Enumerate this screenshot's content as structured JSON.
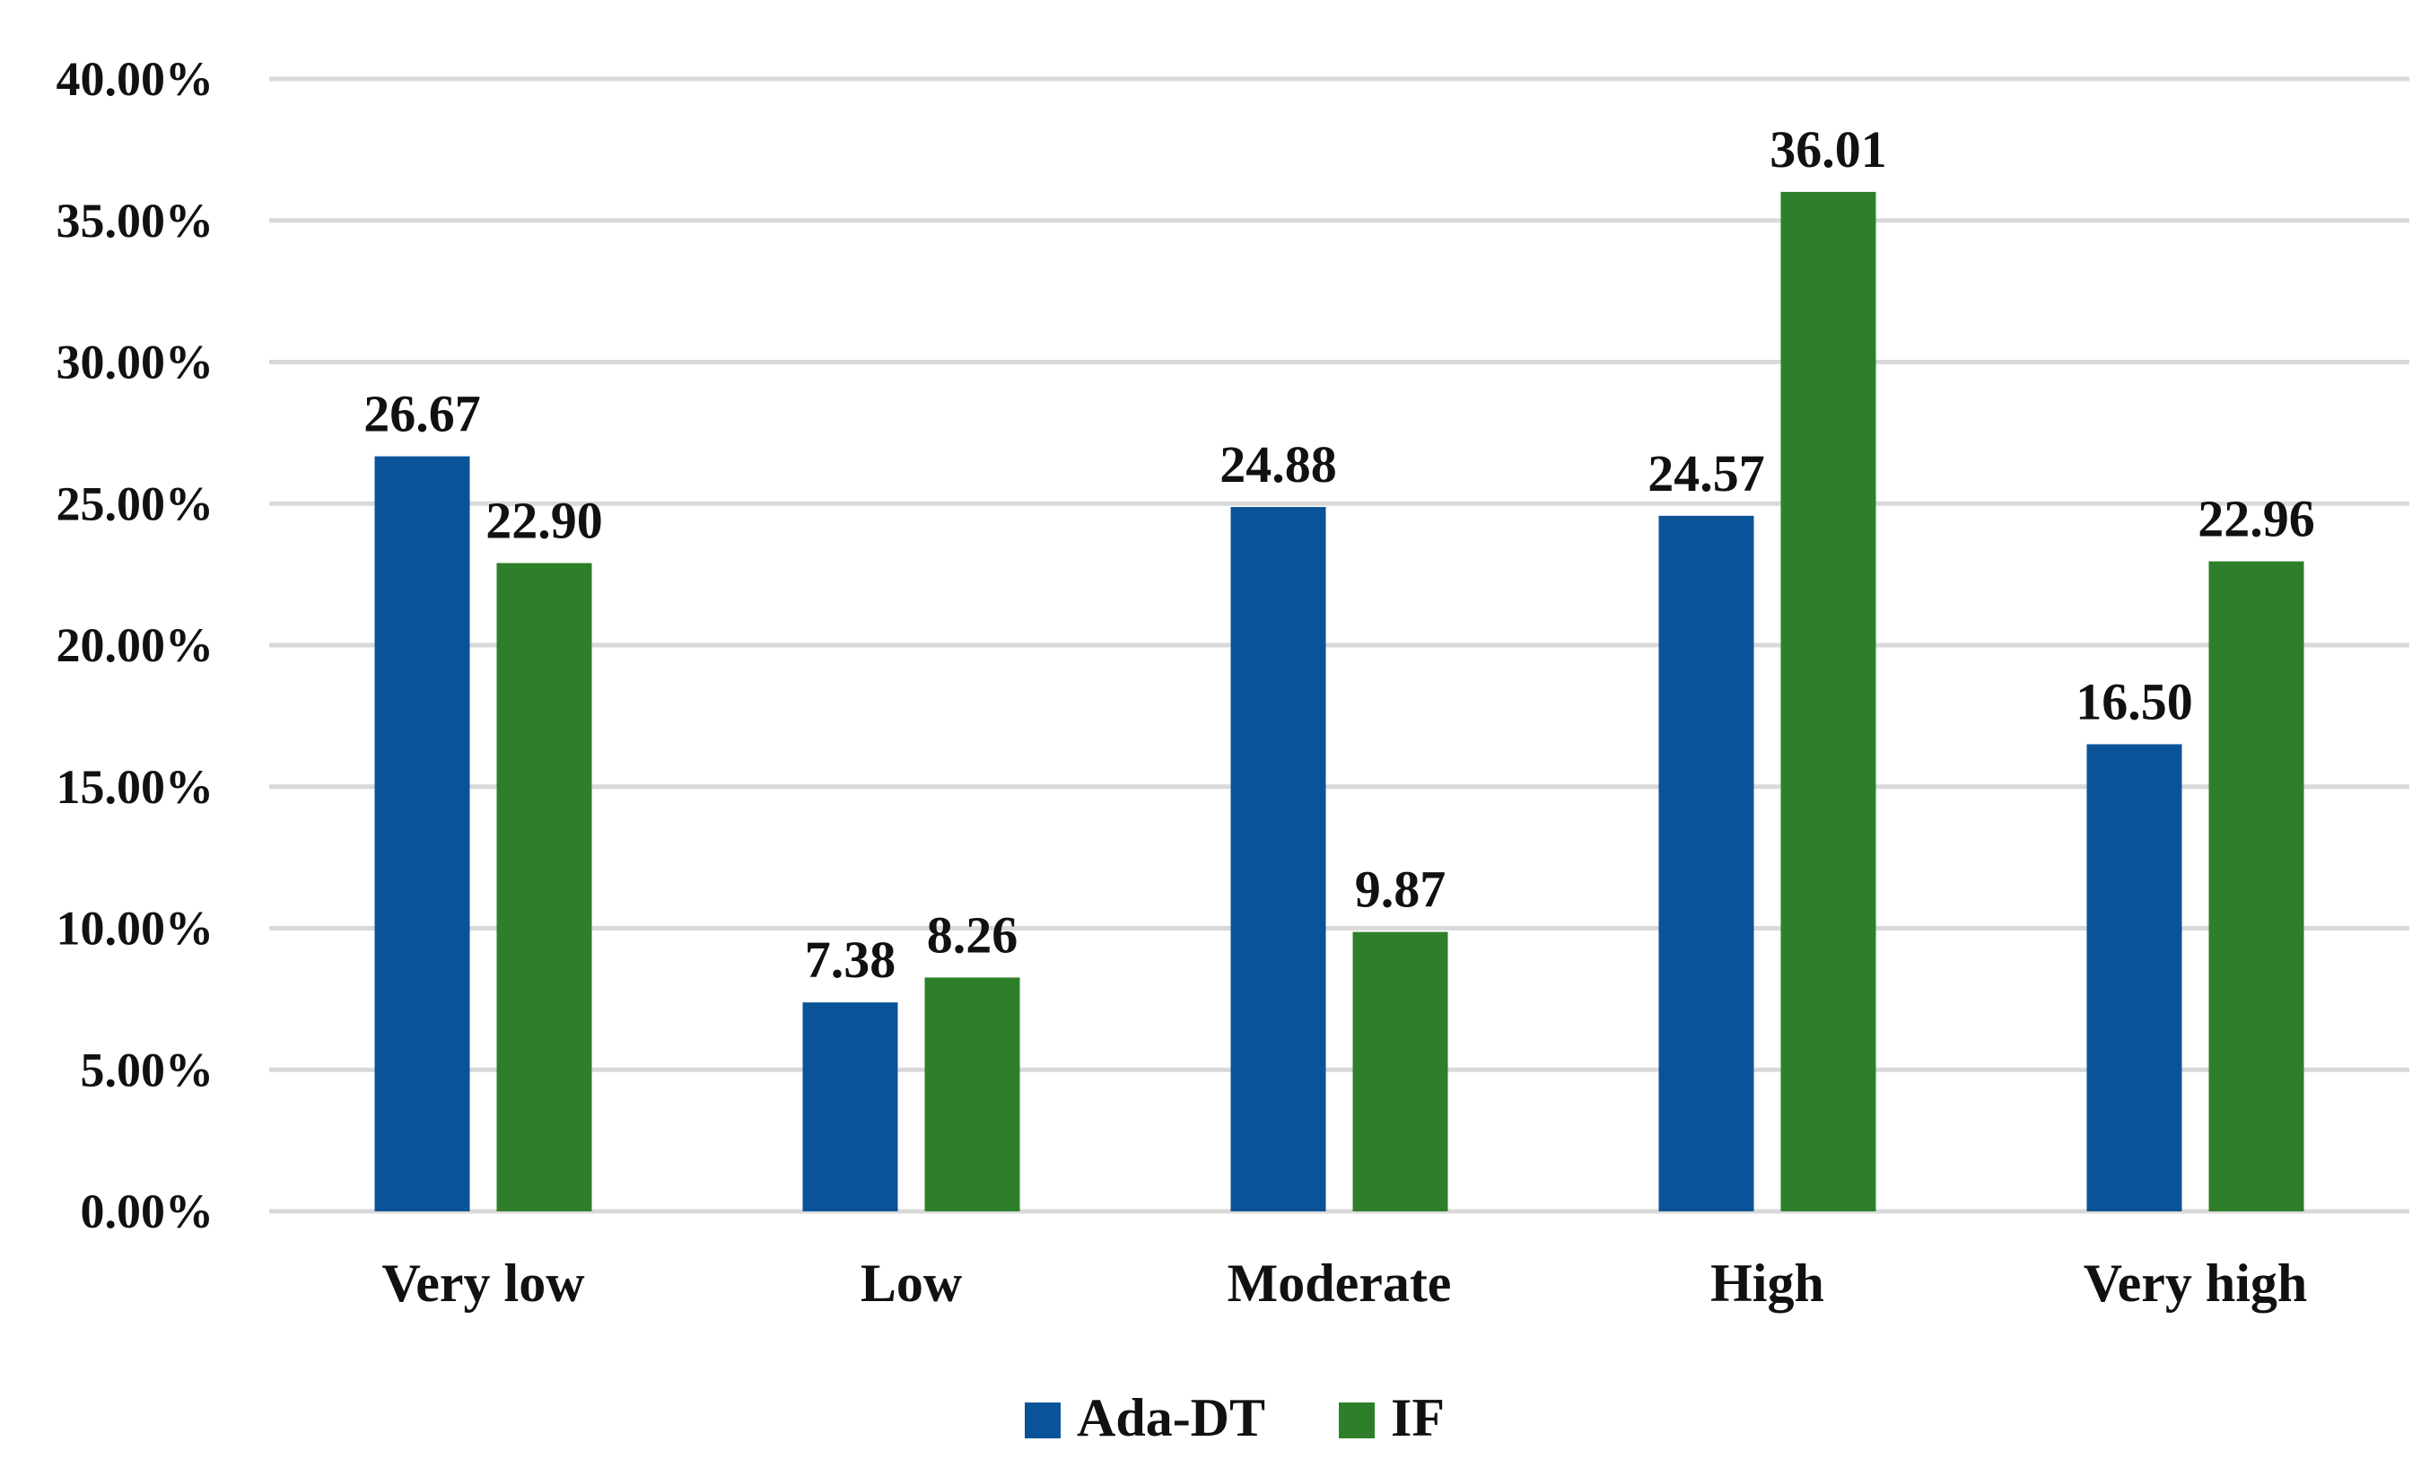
{
  "chart_data": {
    "type": "bar",
    "title": "",
    "xlabel": "",
    "ylabel": "",
    "categories": [
      "Very low",
      "Low",
      "Moderate",
      "High",
      "Very high"
    ],
    "series": [
      {
        "name": "Ada-DT",
        "color": "#0A5399",
        "values": [
          26.67,
          7.38,
          24.88,
          24.57,
          16.5
        ],
        "labels": [
          "26.67",
          "7.38",
          "24.88",
          "24.57",
          "16.50"
        ]
      },
      {
        "name": "IF",
        "color": "#2E7F2A",
        "values": [
          22.9,
          8.26,
          9.87,
          36.01,
          22.96
        ],
        "labels": [
          "22.90",
          "8.26",
          "9.87",
          "36.01",
          "22.96"
        ]
      }
    ],
    "ylim": [
      0,
      40
    ],
    "yticks": [
      0,
      5,
      10,
      15,
      20,
      25,
      30,
      35,
      40
    ],
    "ytick_labels": [
      "0.00%",
      "5.00%",
      "10.00%",
      "15.00%",
      "20.00%",
      "25.00%",
      "30.00%",
      "35.00%",
      "40.00%"
    ],
    "grid": true,
    "legend_position": "bottom-center",
    "gridline_color": "#D9D9D9"
  }
}
